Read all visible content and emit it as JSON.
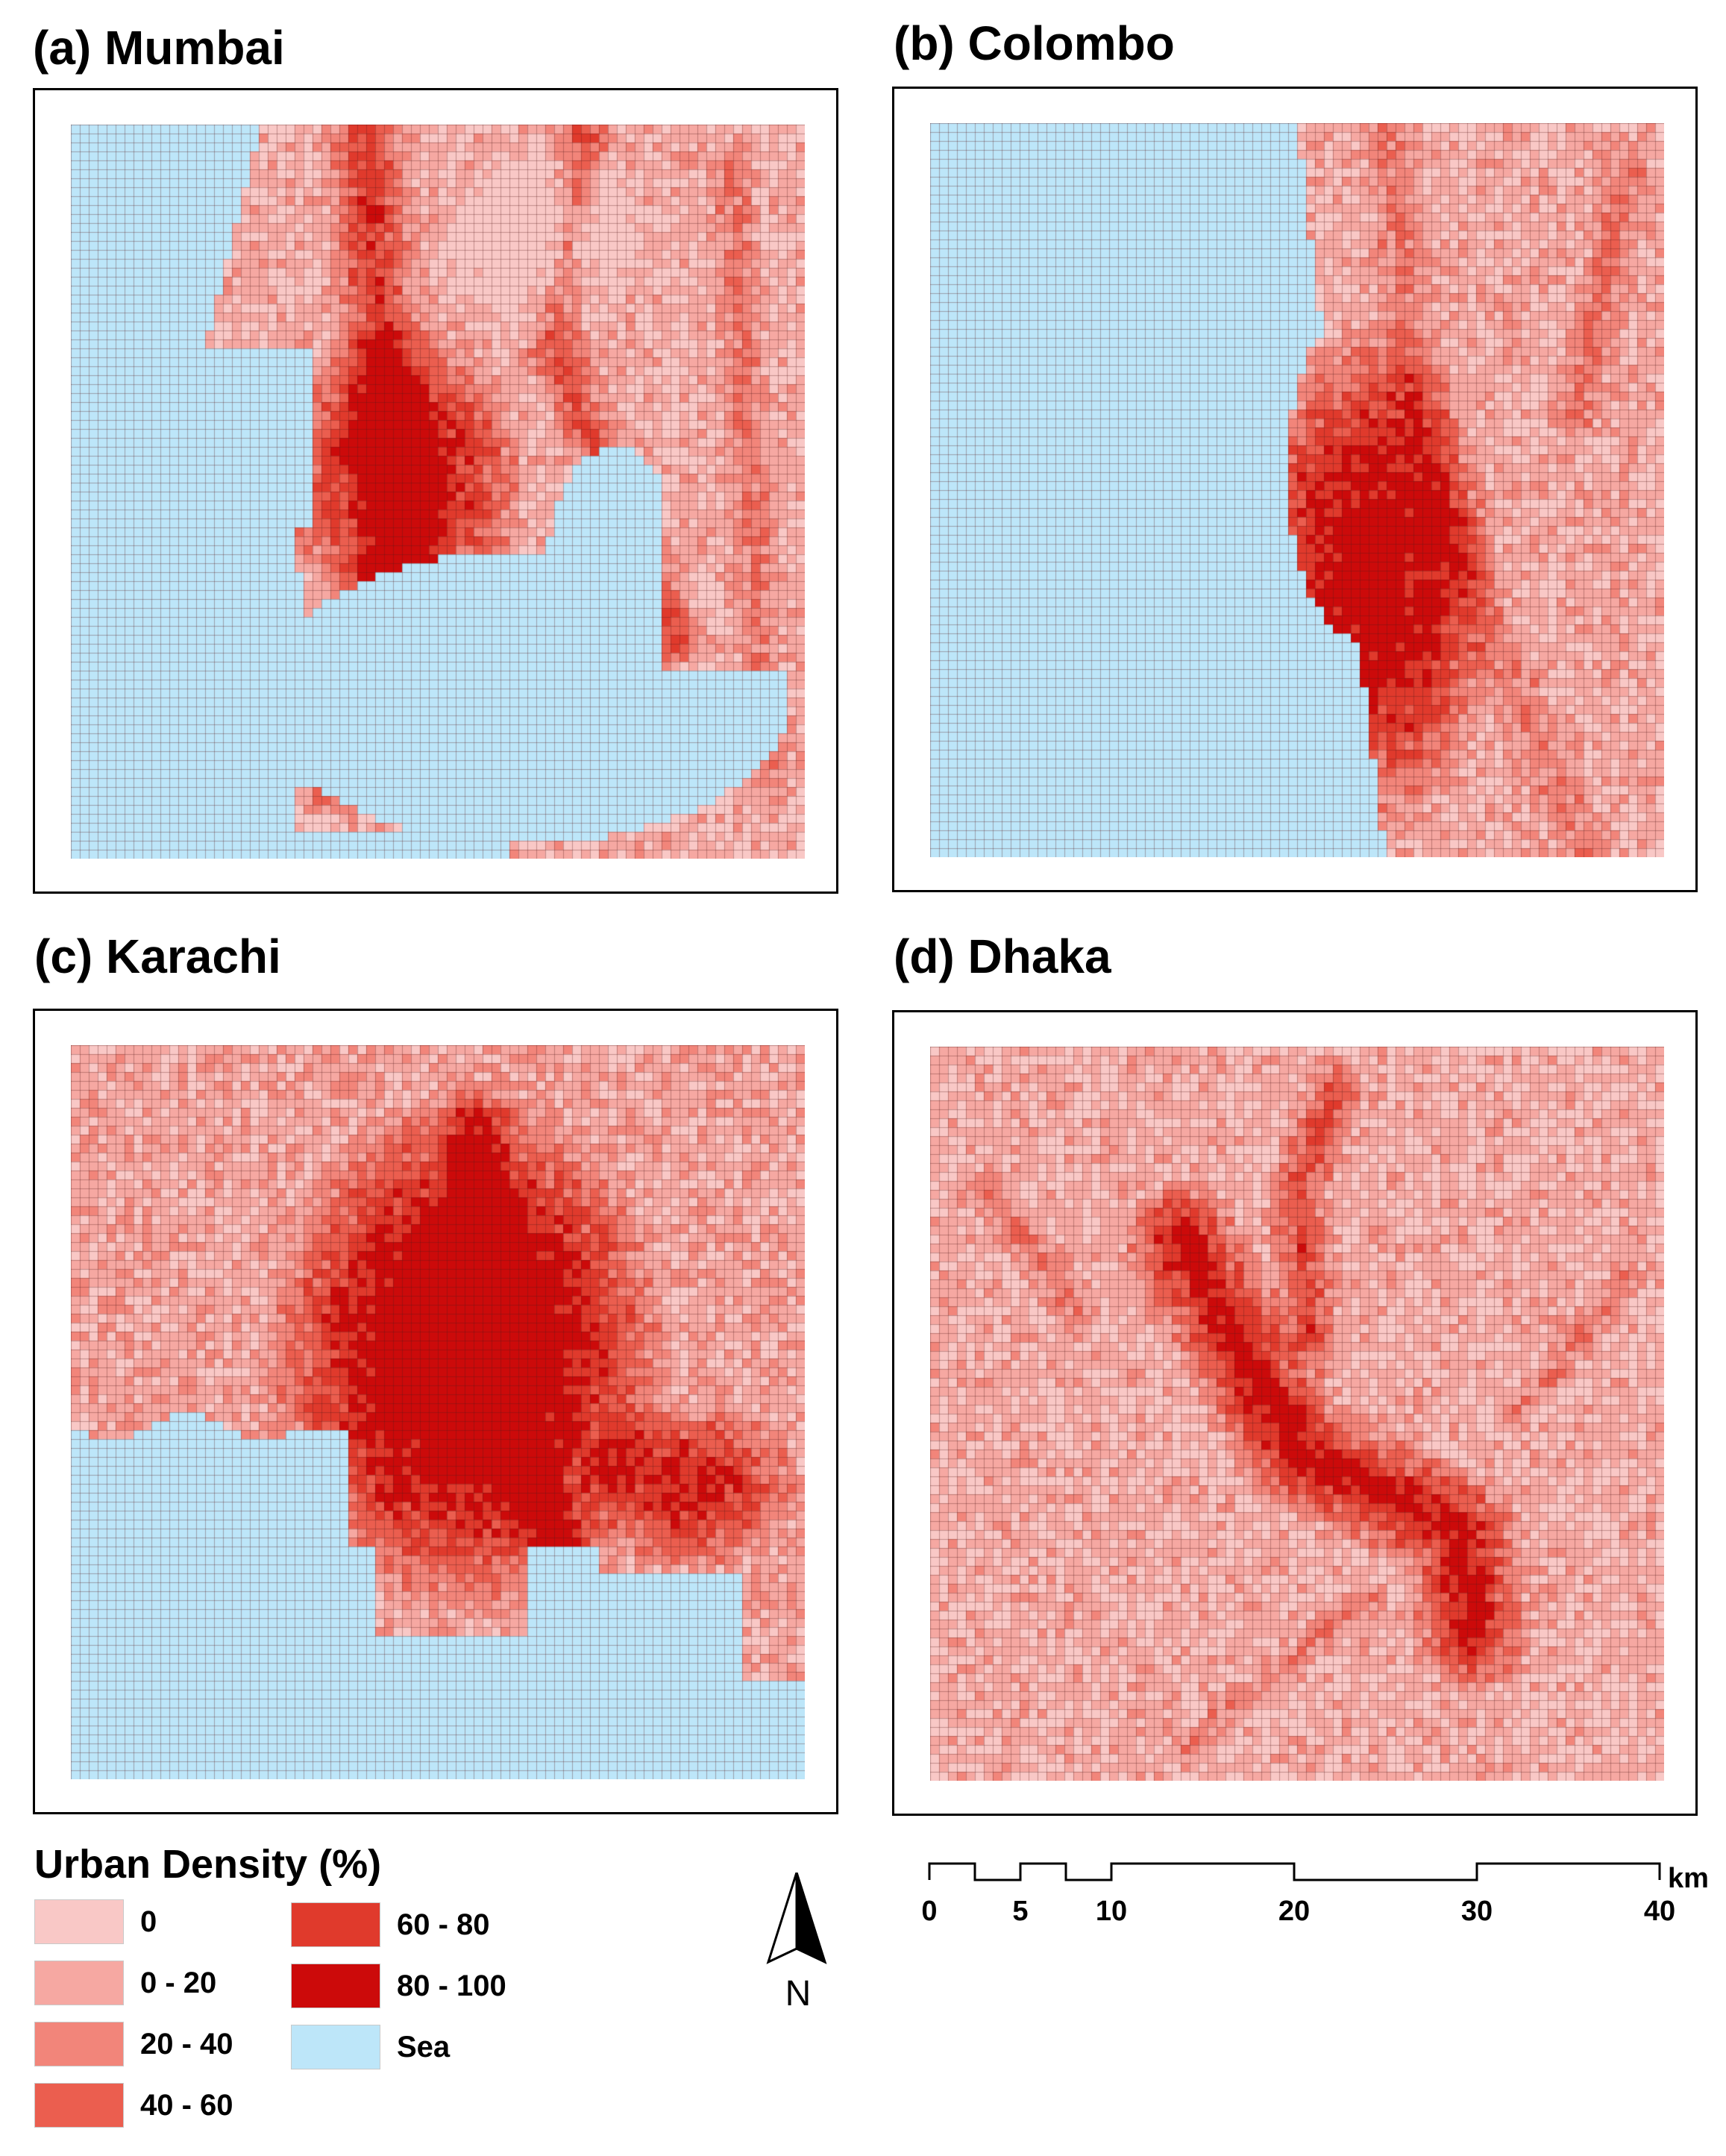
{
  "panels": [
    {
      "id": "mumbai",
      "title": "(a) Mumbai"
    },
    {
      "id": "colombo",
      "title": "(b) Colombo"
    },
    {
      "id": "karachi",
      "title": "(c) Karachi"
    },
    {
      "id": "dhaka",
      "title": "(d) Dhaka"
    }
  ],
  "legend": {
    "title": "Urban Density (%)",
    "classes": [
      {
        "label": "0",
        "color": "#f9c8c6"
      },
      {
        "label": "0 - 20",
        "color": "#f6a8a2"
      },
      {
        "label": "20 - 40",
        "color": "#f2857a"
      },
      {
        "label": "40 - 60",
        "color": "#eb5e4f"
      },
      {
        "label": "60 - 80",
        "color": "#e03a2c"
      },
      {
        "label": "80 - 100",
        "color": "#cc0a0a"
      },
      {
        "label": "Sea",
        "color": "#bde6f9"
      }
    ]
  },
  "north_arrow": {
    "label": "N"
  },
  "scale_bar": {
    "unit": "km",
    "ticks": [
      "0",
      "5",
      "10",
      "20",
      "30",
      "40"
    ]
  },
  "colors": {
    "sea": "#bde6f9",
    "grid_line": "#7a2a2a",
    "frame": "#000000"
  }
}
